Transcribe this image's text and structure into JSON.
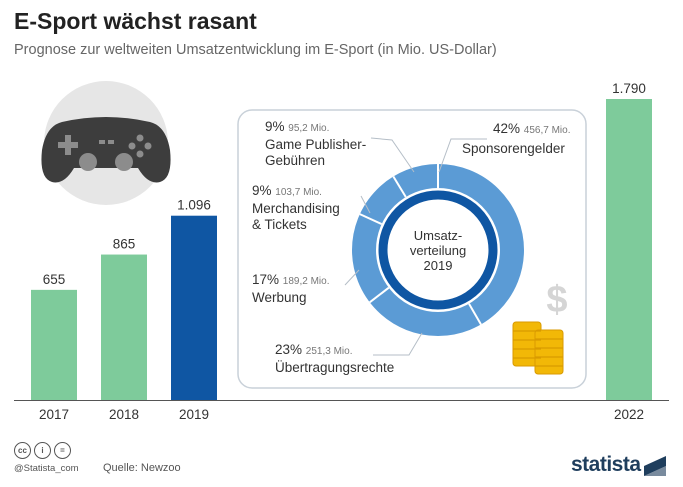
{
  "title": "E-Sport wächst rasant",
  "subtitle": "Prognose zur weltweiten Umsatzentwicklung im E-Sport (in Mio. US-Dollar)",
  "colors": {
    "bar": "#7ecb9b",
    "bar_highlight": "#0f56a3",
    "donut_outer": "#5b9bd5",
    "donut_inner": "#0f56a3",
    "panel_border": "#c9d1d9"
  },
  "chart_data": [
    {
      "type": "bar",
      "categories": [
        "2017",
        "2018",
        "2019",
        "2022"
      ],
      "values": [
        655,
        865,
        1096,
        1790
      ],
      "value_labels": [
        "655",
        "865",
        "1.096",
        "1.790"
      ],
      "highlight": "2019",
      "title": "E-Sport wächst rasant",
      "subtitle": "Prognose zur weltweiten Umsatzentwicklung im E-Sport (in Mio. US-Dollar)",
      "ylim": [
        0,
        1790
      ],
      "grid": false
    },
    {
      "type": "pie",
      "center_label": [
        "Umsatz-",
        "verteilung",
        "2019"
      ],
      "slices": [
        {
          "pct_label": "42%",
          "value_label": "456,7 Mio.",
          "name": "Sponsorengelder",
          "value": 456.7
        },
        {
          "pct_label": "23%",
          "value_label": "251,3 Mio.",
          "name": "Übertragungsrechte",
          "value": 251.3
        },
        {
          "pct_label": "17%",
          "value_label": "189,2 Mio.",
          "name": "Werbung",
          "value": 189.2
        },
        {
          "pct_label": "9%",
          "value_label": "103,7 Mio.",
          "name": "Merchandising & Tickets",
          "name_lines": [
            "Merchandising",
            "& Tickets"
          ],
          "value": 103.7
        },
        {
          "pct_label": "9%",
          "value_label": "95,2 Mio.",
          "name": "Game Publisher-Gebühren",
          "name_lines": [
            "Game Publisher-",
            "Gebühren"
          ],
          "value": 95.2
        }
      ]
    }
  ],
  "footer": {
    "handle": "@Statista_com",
    "source": "Quelle: Newzoo",
    "logo": "statista",
    "cc_icons": [
      "cc",
      "i",
      "="
    ]
  }
}
